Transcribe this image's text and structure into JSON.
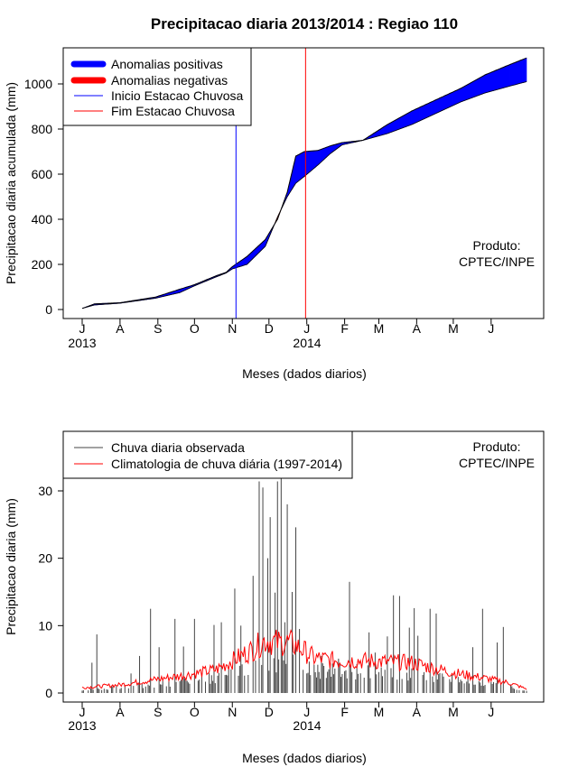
{
  "figure_title": "Precipitacao diaria 2013/2014 : Regiao 110",
  "colors": {
    "positive": "#0000ff",
    "negative": "#ff0000",
    "observed": "#444444",
    "climatology": "#ff0000",
    "axis": "#000000"
  },
  "chart_data": [
    {
      "type": "area",
      "title": "Precipitacao diaria 2013/2014 : Regiao 110",
      "xlabel": "Meses (dados diarios)",
      "ylabel": "Precipitacao diaria acumulada (mm)",
      "ylim": [
        0,
        1100
      ],
      "yticks": [
        0,
        200,
        400,
        600,
        800,
        1000
      ],
      "month_ticks": [
        "J",
        "A",
        "S",
        "O",
        "N",
        "D",
        "J",
        "F",
        "M",
        "A",
        "M",
        "J"
      ],
      "year_labels": [
        "2013",
        "2014"
      ],
      "legend": {
        "position": "top-left",
        "entries": [
          "Anomalias positivas",
          "Anomalias negativas",
          "Inicio Estacao Chuvosa",
          "Fim Estacao Chuvosa"
        ]
      },
      "annotation": {
        "line1": "Produto:",
        "line2": "CPTEC/INPE"
      },
      "season_start_day": 126,
      "season_end_day": 183,
      "observed_cumulative_keys": {
        "day": [
          0,
          10,
          31,
          60,
          80,
          92,
          110,
          118,
          123,
          135,
          150,
          160,
          168,
          175,
          182,
          193,
          203,
          213,
          230,
          250,
          270,
          290,
          310,
          330,
          350,
          364
        ],
        "value": [
          5,
          25,
          30,
          55,
          90,
          110,
          150,
          165,
          190,
          235,
          310,
          400,
          520,
          680,
          700,
          705,
          725,
          740,
          750,
          820,
          880,
          930,
          980,
          1040,
          1085,
          1115
        ]
      },
      "climatology_cumulative_keys": {
        "day": [
          0,
          10,
          31,
          60,
          80,
          92,
          110,
          118,
          123,
          135,
          150,
          160,
          168,
          175,
          182,
          193,
          203,
          213,
          230,
          250,
          270,
          290,
          310,
          330,
          350,
          364
        ],
        "value": [
          5,
          20,
          28,
          50,
          75,
          105,
          145,
          162,
          180,
          200,
          280,
          410,
          500,
          560,
          590,
          640,
          690,
          730,
          750,
          780,
          820,
          870,
          920,
          960,
          990,
          1010
        ]
      }
    },
    {
      "type": "bar",
      "xlabel": "Meses (dados diarios)",
      "ylabel": "Precipitacao diaria (mm)",
      "ylim": [
        0,
        32
      ],
      "yticks": [
        0,
        10,
        20,
        30
      ],
      "month_ticks": [
        "J",
        "A",
        "S",
        "O",
        "N",
        "D",
        "J",
        "F",
        "M",
        "A",
        "M",
        "J"
      ],
      "year_labels": [
        "2013",
        "2014"
      ],
      "legend": {
        "position": "top-left",
        "entries": [
          "Chuva diaria observada",
          "Climatologia de chuva diária (1997-2014)"
        ]
      },
      "annotation": {
        "line1": "Produto:",
        "line2": "CPTEC/INPE"
      },
      "observed_peaks": {
        "day": [
          8,
          12,
          40,
          47,
          56,
          63,
          76,
          83,
          92,
          108,
          114,
          125,
          130,
          140,
          145,
          148,
          152,
          154,
          158,
          160,
          163,
          166,
          168,
          172,
          175,
          178,
          185,
          196,
          210,
          219,
          235,
          240,
          250,
          255,
          260,
          268,
          272,
          275,
          285,
          290,
          320,
          328,
          340,
          345
        ],
        "value": [
          4.5,
          8.7,
          2.9,
          5.5,
          12.5,
          6.8,
          11,
          6.9,
          11,
          10.1,
          10.5,
          15.5,
          10,
          17.4,
          31.4,
          30.5,
          20,
          26.1,
          14.9,
          31.4,
          32,
          10.5,
          28,
          15,
          24.6,
          9.5,
          3,
          5.5,
          5.1,
          16.5,
          9,
          6,
          8.4,
          14.5,
          14.4,
          9.7,
          12.6,
          8.5,
          12.5,
          11.8,
          6.8,
          12.5,
          7.5,
          9.8
        ]
      },
      "climatology_keys": {
        "day": [
          0,
          30,
          60,
          90,
          110,
          120,
          140,
          150,
          160,
          170,
          180,
          190,
          210,
          230,
          250,
          270,
          290,
          310,
          330,
          350,
          364
        ],
        "value": [
          0.8,
          1.2,
          2.0,
          2.8,
          3.5,
          4.5,
          6.5,
          7.8,
          7.5,
          7.5,
          6.5,
          5.2,
          4.8,
          4.8,
          4.6,
          4.5,
          3.6,
          2.8,
          2.2,
          1.5,
          0.6
        ]
      }
    }
  ]
}
